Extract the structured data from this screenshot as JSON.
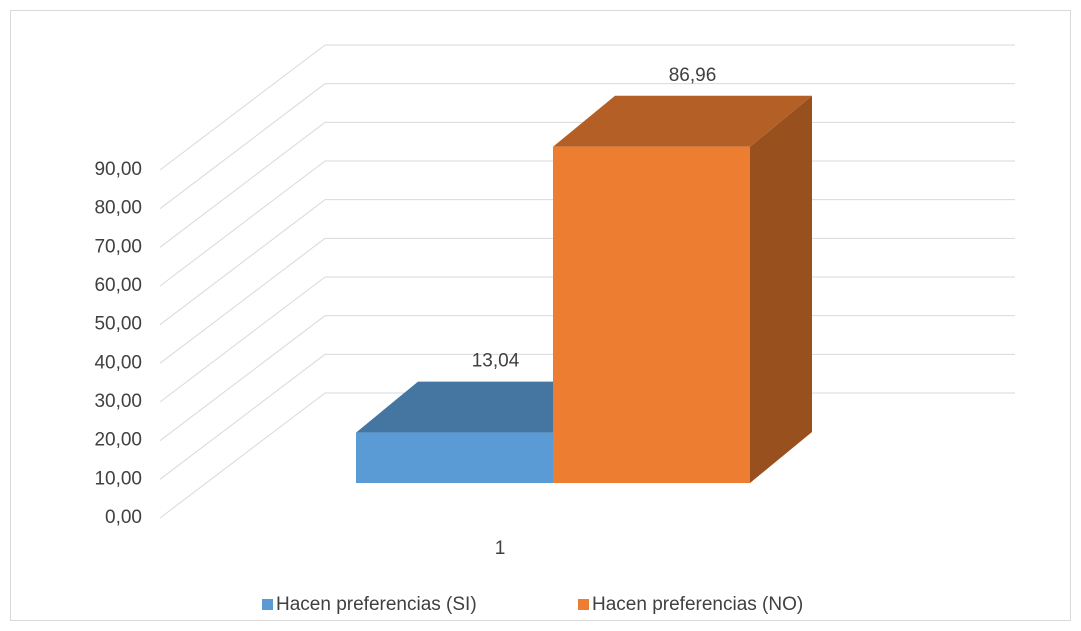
{
  "chart_data": {
    "type": "bar3d",
    "categories": [
      "1"
    ],
    "series": [
      {
        "name": "Hacen preferencias (SI)",
        "color": "#5b9bd5",
        "values": [
          13.04
        ],
        "value_labels": [
          "13,04"
        ]
      },
      {
        "name": "Hacen preferencias (NO)",
        "color": "#ed7d31",
        "values": [
          86.96
        ],
        "value_labels": [
          "86,96"
        ]
      }
    ],
    "ylim": [
      0,
      90
    ],
    "yticks": [
      {
        "value": 0,
        "label": "0,00"
      },
      {
        "value": 10,
        "label": "10,00"
      },
      {
        "value": 20,
        "label": "20,00"
      },
      {
        "value": 30,
        "label": "30,00"
      },
      {
        "value": 40,
        "label": "40,00"
      },
      {
        "value": 50,
        "label": "50,00"
      },
      {
        "value": 60,
        "label": "60,00"
      },
      {
        "value": 70,
        "label": "70,00"
      },
      {
        "value": 80,
        "label": "80,00"
      },
      {
        "value": 90,
        "label": "90,00"
      }
    ],
    "grid": true,
    "legend": "bottom"
  }
}
